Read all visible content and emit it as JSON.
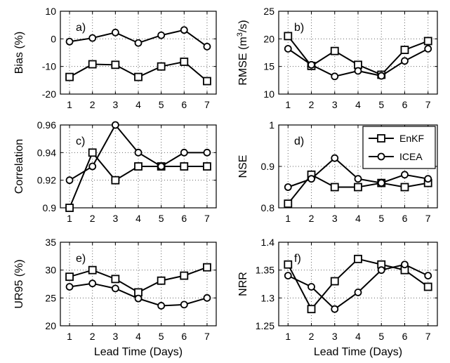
{
  "legend": {
    "placement": "panel-d-top-right",
    "entries": [
      {
        "name": "EnKF",
        "marker": "square"
      },
      {
        "name": "ICEA",
        "marker": "circle"
      }
    ]
  },
  "chart_data": [
    {
      "type": "line",
      "panel_label": "a)",
      "ylabel": "Bias (%)",
      "xlabel": "",
      "x": [
        1,
        2,
        3,
        4,
        5,
        6,
        7
      ],
      "xticks": [
        1,
        2,
        3,
        4,
        5,
        6,
        7
      ],
      "ylim": [
        -20,
        10
      ],
      "yticks": [
        -20,
        -10,
        0,
        10
      ],
      "grid": true,
      "series": [
        {
          "name": "EnKF",
          "marker": "square",
          "values": [
            -13.8,
            -9.2,
            -9.4,
            -13.8,
            -10.0,
            -8.3,
            -15.3
          ]
        },
        {
          "name": "ICEA",
          "marker": "circle",
          "values": [
            -1.0,
            0.3,
            2.3,
            -1.5,
            1.3,
            3.2,
            -2.8
          ]
        }
      ]
    },
    {
      "type": "line",
      "panel_label": "b)",
      "ylabel": "RMSE (m3/s)",
      "xlabel": "",
      "x": [
        1,
        2,
        3,
        4,
        5,
        6,
        7
      ],
      "xticks": [
        1,
        2,
        3,
        4,
        5,
        6,
        7
      ],
      "ylim": [
        10,
        25
      ],
      "yticks": [
        10,
        15,
        20,
        25
      ],
      "grid": true,
      "series": [
        {
          "name": "EnKF",
          "marker": "square",
          "values": [
            20.5,
            15.1,
            17.8,
            15.3,
            13.5,
            18.0,
            19.6
          ]
        },
        {
          "name": "ICEA",
          "marker": "circle",
          "values": [
            18.2,
            15.3,
            13.2,
            14.2,
            13.3,
            16.0,
            18.2
          ]
        }
      ]
    },
    {
      "type": "line",
      "panel_label": "c)",
      "ylabel": "Correlation",
      "xlabel": "",
      "x": [
        1,
        2,
        3,
        4,
        5,
        6,
        7
      ],
      "xticks": [
        1,
        2,
        3,
        4,
        5,
        6,
        7
      ],
      "ylim": [
        0.9,
        0.96
      ],
      "yticks": [
        0.9,
        0.92,
        0.94,
        0.96
      ],
      "grid": true,
      "series": [
        {
          "name": "EnKF",
          "marker": "square",
          "values": [
            0.9,
            0.94,
            0.92,
            0.93,
            0.93,
            0.93,
            0.93
          ]
        },
        {
          "name": "ICEA",
          "marker": "circle",
          "values": [
            0.92,
            0.93,
            0.96,
            0.94,
            0.93,
            0.94,
            0.94
          ]
        }
      ]
    },
    {
      "type": "line",
      "panel_label": "d)",
      "ylabel": "NSE",
      "xlabel": "",
      "x": [
        1,
        2,
        3,
        4,
        5,
        6,
        7
      ],
      "xticks": [
        1,
        2,
        3,
        4,
        5,
        6,
        7
      ],
      "ylim": [
        0.8,
        1.0
      ],
      "yticks": [
        0.8,
        0.9,
        1
      ],
      "grid": true,
      "series": [
        {
          "name": "EnKF",
          "marker": "square",
          "values": [
            0.81,
            0.88,
            0.85,
            0.85,
            0.86,
            0.85,
            0.86
          ]
        },
        {
          "name": "ICEA",
          "marker": "circle",
          "values": [
            0.85,
            0.87,
            0.92,
            0.87,
            0.86,
            0.88,
            0.87
          ]
        }
      ]
    },
    {
      "type": "line",
      "panel_label": "e)",
      "ylabel": "UR95 (%)",
      "xlabel": "Lead Time (Days)",
      "x": [
        1,
        2,
        3,
        4,
        5,
        6,
        7
      ],
      "xticks": [
        1,
        2,
        3,
        4,
        5,
        6,
        7
      ],
      "ylim": [
        20,
        35
      ],
      "yticks": [
        20,
        25,
        30,
        35
      ],
      "grid": true,
      "series": [
        {
          "name": "EnKF",
          "marker": "square",
          "values": [
            28.8,
            30.0,
            28.4,
            26.0,
            28.1,
            29.0,
            30.5
          ]
        },
        {
          "name": "ICEA",
          "marker": "circle",
          "values": [
            27.0,
            27.6,
            26.7,
            24.9,
            23.6,
            23.8,
            25.0
          ]
        }
      ]
    },
    {
      "type": "line",
      "panel_label": "f)",
      "ylabel": "NRR",
      "xlabel": "Lead Time (Days)",
      "x": [
        1,
        2,
        3,
        4,
        5,
        6,
        7
      ],
      "xticks": [
        1,
        2,
        3,
        4,
        5,
        6,
        7
      ],
      "ylim": [
        1.25,
        1.4
      ],
      "yticks": [
        1.25,
        1.3,
        1.35,
        1.4
      ],
      "grid": true,
      "series": [
        {
          "name": "EnKF",
          "marker": "square",
          "values": [
            1.36,
            1.28,
            1.33,
            1.37,
            1.36,
            1.35,
            1.32
          ]
        },
        {
          "name": "ICEA",
          "marker": "circle",
          "values": [
            1.34,
            1.32,
            1.28,
            1.31,
            1.35,
            1.36,
            1.34
          ]
        }
      ]
    }
  ]
}
